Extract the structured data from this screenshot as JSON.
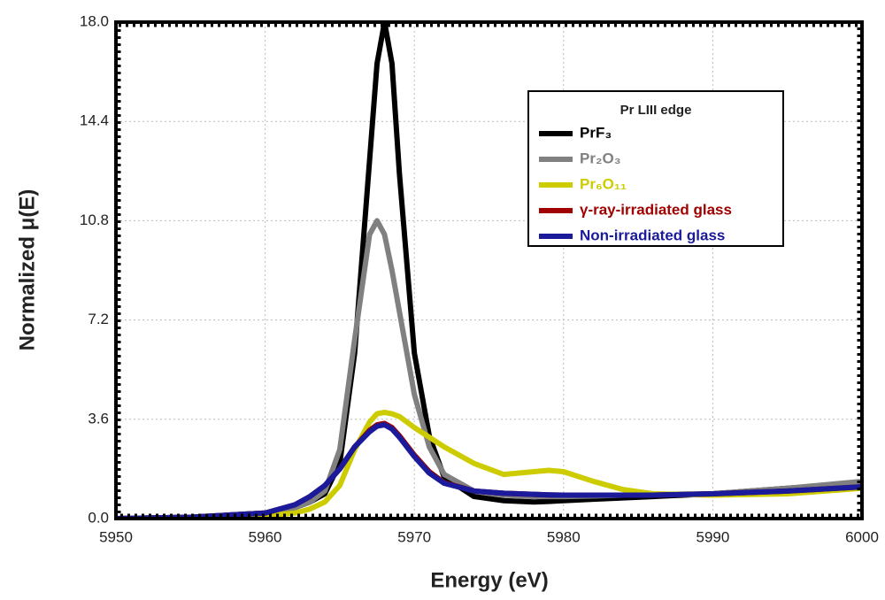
{
  "chart_data": {
    "type": "line",
    "xlabel": "Energy (eV)",
    "ylabel": "Normalized μ(E)",
    "legend_title": "Pr LIII edge",
    "legend": "upper right",
    "grid": true,
    "x": [
      5950,
      5955,
      5960,
      5962,
      5963,
      5964,
      5965,
      5966,
      5967,
      5967.5,
      5968,
      5968.5,
      5969,
      5970,
      5971,
      5972,
      5974,
      5976,
      5978,
      5979,
      5980,
      5982,
      5984,
      5986,
      5990,
      5995,
      6000
    ],
    "xlim": [
      5950,
      6000
    ],
    "xticks": [
      5950,
      5960,
      5970,
      5980,
      5990,
      6000
    ],
    "ylim": [
      0,
      18
    ],
    "yticks": [
      {
        "value": 0,
        "label": "0.0"
      },
      3.6,
      7.2,
      10.8,
      14.4,
      {
        "value": 18,
        "label": "18.0"
      }
    ],
    "series": [
      {
        "name": "PrF₃",
        "color": "#000000",
        "values": [
          0,
          0.05,
          0.2,
          0.4,
          0.6,
          0.9,
          2,
          6,
          13,
          16.5,
          18,
          16.5,
          12.5,
          6,
          3,
          1.5,
          0.8,
          0.65,
          0.6,
          0.62,
          0.65,
          0.7,
          0.75,
          0.8,
          0.9,
          1.1,
          1.3
        ]
      },
      {
        "name": "Pr₂O₃",
        "color": "#808080",
        "values": [
          0,
          0.05,
          0.2,
          0.4,
          0.6,
          1,
          2.5,
          6.5,
          10.3,
          10.8,
          10.3,
          9,
          7.5,
          4.5,
          2.6,
          1.6,
          1.0,
          0.85,
          0.8,
          0.8,
          0.8,
          0.82,
          0.85,
          0.87,
          0.9,
          1.1,
          1.35
        ]
      },
      {
        "name": "Pr₆O₁₁",
        "color": "#cccc00",
        "values": [
          0,
          0.03,
          0.1,
          0.2,
          0.35,
          0.6,
          1.2,
          2.5,
          3.5,
          3.8,
          3.85,
          3.8,
          3.7,
          3.3,
          2.95,
          2.6,
          2.0,
          1.6,
          1.7,
          1.75,
          1.7,
          1.35,
          1.05,
          0.9,
          0.85,
          0.9,
          1.1
        ]
      },
      {
        "name": "γ-ray-irradiated glass",
        "color": "#a00000",
        "values": [
          0,
          0.05,
          0.2,
          0.5,
          0.8,
          1.2,
          1.8,
          2.6,
          3.2,
          3.4,
          3.45,
          3.3,
          3.0,
          2.3,
          1.7,
          1.3,
          1.0,
          0.92,
          0.88,
          0.86,
          0.85,
          0.85,
          0.85,
          0.85,
          0.9,
          1.0,
          1.15
        ]
      },
      {
        "name": "Non-irradiated glass",
        "color": "#1a1a9a",
        "values": [
          0,
          0.05,
          0.2,
          0.5,
          0.8,
          1.2,
          1.8,
          2.6,
          3.15,
          3.35,
          3.4,
          3.25,
          2.95,
          2.25,
          1.65,
          1.28,
          1.0,
          0.92,
          0.88,
          0.86,
          0.85,
          0.85,
          0.85,
          0.85,
          0.9,
          1.0,
          1.15
        ]
      }
    ]
  }
}
